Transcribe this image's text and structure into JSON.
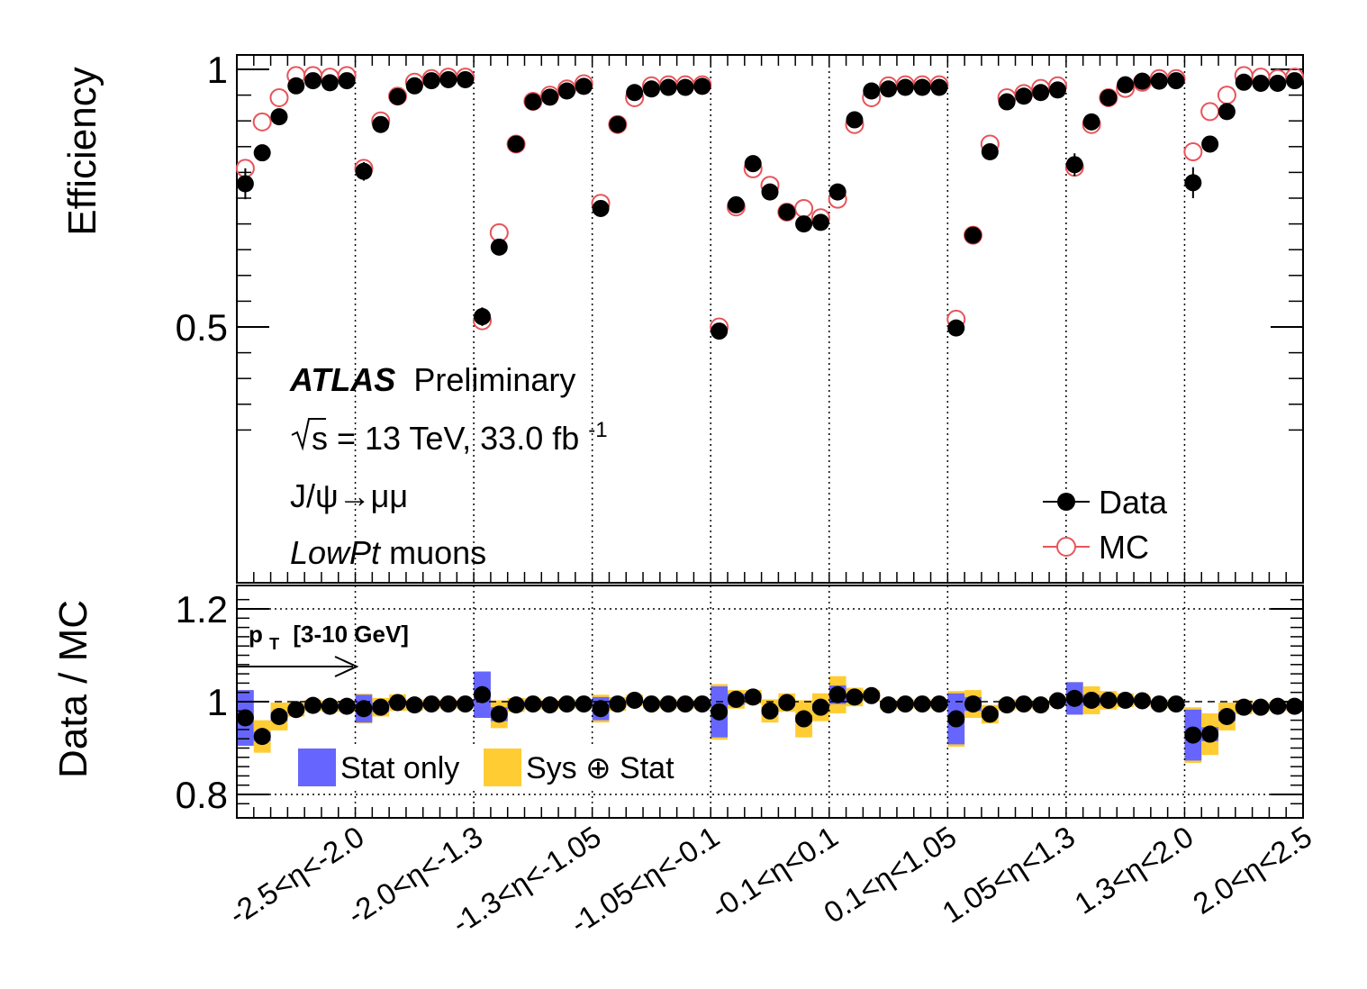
{
  "labels": {
    "experiment": "ATLAS",
    "status": "Preliminary",
    "energy_prefix": "s = 13 TeV, 33.0 fb",
    "energy_exp": "-1",
    "process": "J/ψ→μμ",
    "muons_italic": "LowPt",
    "muons_rest": " muons",
    "pt_main": "p",
    "pt_sub": "T",
    "pt_range": "[3-10 GeV]"
  },
  "colors": {
    "data": "#000000",
    "mc": "#e8545a",
    "stat_only": "#6666ff",
    "sys_stat": "#ffcc33",
    "frame": "#000000"
  },
  "chart_data": [
    {
      "type": "scatter",
      "panel": "efficiency",
      "ylabel": "Efficiency",
      "ylim": [
        0.25,
        1.02
      ],
      "yticks": [
        "1",
        "0.5"
      ],
      "ytick_values": [
        1.0,
        0.5
      ],
      "categories": [
        "-2.5<η<-2.0",
        "-2.0<η<-1.3",
        "-1.3<η<-1.05",
        "-1.05<η<-0.1",
        "-0.1<η<0.1",
        "0.1<η<1.05",
        "1.05<η<1.3",
        "1.3<η<2.0",
        "2.0<η<2.5"
      ],
      "points_per_category": 7,
      "legend": {
        "position": "bottom-right",
        "entries": [
          "Data",
          "MC"
        ]
      },
      "series": [
        {
          "name": "Data",
          "marker": "filled-circle",
          "values": [
            0.778,
            0.838,
            0.908,
            0.968,
            0.978,
            0.974,
            0.978,
            0.802,
            0.893,
            0.947,
            0.968,
            0.978,
            0.98,
            0.98,
            0.52,
            0.655,
            0.855,
            0.937,
            0.946,
            0.958,
            0.967,
            0.73,
            0.893,
            0.955,
            0.962,
            0.965,
            0.965,
            0.967,
            0.492,
            0.737,
            0.817,
            0.762,
            0.723,
            0.7,
            0.703,
            0.762,
            0.902,
            0.958,
            0.962,
            0.965,
            0.965,
            0.965,
            0.498,
            0.678,
            0.84,
            0.937,
            0.948,
            0.955,
            0.96,
            0.815,
            0.898,
            0.945,
            0.97,
            0.977,
            0.977,
            0.978,
            0.78,
            0.855,
            0.918,
            0.975,
            0.973,
            0.973,
            0.978
          ],
          "errors": [
            0.03,
            0.01,
            0.008,
            0.006,
            0.006,
            0.006,
            0.006,
            0.018,
            0.008,
            0.006,
            0.005,
            0.005,
            0.005,
            0.005,
            0.018,
            0.01,
            0.008,
            0.006,
            0.006,
            0.006,
            0.006,
            0.012,
            0.008,
            0.006,
            0.006,
            0.006,
            0.006,
            0.006,
            0.016,
            0.01,
            0.008,
            0.008,
            0.008,
            0.008,
            0.008,
            0.014,
            0.008,
            0.006,
            0.006,
            0.006,
            0.006,
            0.006,
            0.016,
            0.01,
            0.008,
            0.006,
            0.006,
            0.006,
            0.006,
            0.022,
            0.01,
            0.006,
            0.006,
            0.006,
            0.006,
            0.006,
            0.03,
            0.01,
            0.008,
            0.006,
            0.006,
            0.006,
            0.006
          ]
        },
        {
          "name": "MC",
          "marker": "open-circle",
          "values": [
            0.808,
            0.898,
            0.945,
            0.988,
            0.988,
            0.985,
            0.988,
            0.808,
            0.9,
            0.948,
            0.975,
            0.982,
            0.985,
            0.985,
            0.512,
            0.683,
            0.855,
            0.938,
            0.95,
            0.962,
            0.972,
            0.74,
            0.893,
            0.945,
            0.968,
            0.97,
            0.97,
            0.97,
            0.5,
            0.733,
            0.807,
            0.775,
            0.723,
            0.73,
            0.712,
            0.748,
            0.893,
            0.945,
            0.968,
            0.97,
            0.97,
            0.97,
            0.515,
            0.678,
            0.855,
            0.945,
            0.953,
            0.963,
            0.968,
            0.81,
            0.893,
            0.945,
            0.963,
            0.975,
            0.982,
            0.982,
            0.84,
            0.918,
            0.95,
            0.988,
            0.985,
            0.982,
            0.985
          ]
        }
      ]
    },
    {
      "type": "scatter",
      "panel": "ratio",
      "ylabel": "Data / MC",
      "ylim": [
        0.75,
        1.25
      ],
      "yticks": [
        "1.2",
        "1",
        "0.8"
      ],
      "ytick_values": [
        1.2,
        1.0,
        0.8
      ],
      "legend": {
        "position": "bottom-left",
        "entries": [
          "Stat only",
          "Sys ⊕ Stat"
        ]
      },
      "series": [
        {
          "name": "Data / MC",
          "values": [
            0.965,
            0.925,
            0.968,
            0.983,
            0.992,
            0.99,
            0.99,
            0.985,
            0.988,
            0.998,
            0.993,
            0.995,
            0.995,
            0.995,
            1.015,
            0.973,
            0.993,
            0.995,
            0.993,
            0.995,
            0.995,
            0.985,
            0.995,
            1.003,
            0.995,
            0.995,
            0.995,
            0.995,
            0.978,
            1.005,
            1.01,
            0.98,
            0.998,
            0.963,
            0.988,
            1.015,
            1.01,
            1.013,
            0.993,
            0.995,
            0.995,
            0.995,
            0.963,
            0.995,
            0.973,
            0.993,
            0.995,
            0.993,
            1.002,
            1.007,
            1.003,
            1.003,
            1.003,
            1.002,
            0.995,
            0.995,
            0.928,
            0.93,
            0.968,
            0.988,
            0.988,
            0.99,
            0.99
          ],
          "stat_err": [
            0.06,
            0.01,
            0.01,
            0.006,
            0.006,
            0.006,
            0.006,
            0.03,
            0.01,
            0.006,
            0.006,
            0.005,
            0.005,
            0.005,
            0.05,
            0.015,
            0.008,
            0.006,
            0.006,
            0.006,
            0.006,
            0.025,
            0.008,
            0.006,
            0.006,
            0.006,
            0.006,
            0.006,
            0.055,
            0.012,
            0.008,
            0.008,
            0.008,
            0.008,
            0.008,
            0.02,
            0.008,
            0.006,
            0.006,
            0.006,
            0.006,
            0.006,
            0.055,
            0.015,
            0.008,
            0.006,
            0.006,
            0.006,
            0.006,
            0.035,
            0.012,
            0.006,
            0.006,
            0.006,
            0.006,
            0.006,
            0.055,
            0.015,
            0.01,
            0.006,
            0.006,
            0.006,
            0.006
          ],
          "tot_err": [
            0.06,
            0.035,
            0.03,
            0.015,
            0.012,
            0.012,
            0.012,
            0.032,
            0.02,
            0.018,
            0.012,
            0.01,
            0.01,
            0.01,
            0.05,
            0.03,
            0.015,
            0.012,
            0.01,
            0.01,
            0.01,
            0.03,
            0.015,
            0.012,
            0.01,
            0.01,
            0.01,
            0.01,
            0.06,
            0.02,
            0.015,
            0.025,
            0.02,
            0.04,
            0.03,
            0.04,
            0.02,
            0.012,
            0.01,
            0.01,
            0.01,
            0.01,
            0.06,
            0.03,
            0.02,
            0.012,
            0.01,
            0.01,
            0.01,
            0.035,
            0.03,
            0.02,
            0.015,
            0.01,
            0.01,
            0.01,
            0.06,
            0.045,
            0.03,
            0.015,
            0.01,
            0.01,
            0.01
          ]
        }
      ]
    }
  ]
}
